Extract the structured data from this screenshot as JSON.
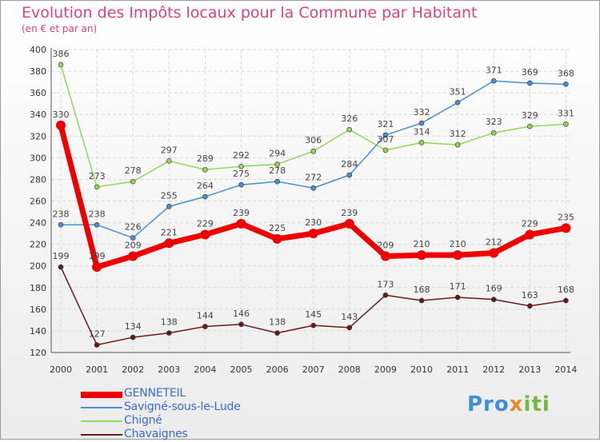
{
  "header": {
    "title": "Evolution des Impôts locaux pour la Commune par Habitant",
    "subtitle": "(en € et par an)"
  },
  "logo": {
    "text": "Proxiti"
  },
  "colors": {
    "GENNETEIL": "#ee0000",
    "Savigné-sous-le-Lude": "#4a8fd0",
    "Chigné": "#8fd65a",
    "Chavaignes": "#6b1a1a",
    "title": "#dd4477",
    "legend_text": "#3a6ad0"
  },
  "chart_data": {
    "type": "line",
    "title": "Evolution des Impôts locaux pour la Commune par Habitant",
    "subtitle": "(en € et par an)",
    "x": [
      2000,
      2001,
      2002,
      2003,
      2004,
      2005,
      2006,
      2007,
      2008,
      2009,
      2010,
      2011,
      2012,
      2013,
      2014
    ],
    "ylim": [
      120,
      400
    ],
    "yticks": [
      120,
      140,
      160,
      180,
      200,
      220,
      240,
      260,
      280,
      300,
      320,
      340,
      360,
      380,
      400
    ],
    "grid": true,
    "legend": "bottom-left",
    "series": [
      {
        "name": "GENNETEIL",
        "values": [
          330,
          199,
          209,
          221,
          229,
          239,
          225,
          230,
          239,
          209,
          210,
          210,
          212,
          229,
          235
        ]
      },
      {
        "name": "Savigné-sous-le-Lude",
        "values": [
          238,
          238,
          226,
          255,
          264,
          275,
          278,
          272,
          284,
          321,
          332,
          351,
          371,
          369,
          368
        ]
      },
      {
        "name": "Chigné",
        "values": [
          386,
          273,
          278,
          297,
          289,
          292,
          294,
          306,
          326,
          307,
          314,
          312,
          323,
          329,
          331
        ]
      },
      {
        "name": "Chavaignes",
        "values": [
          199,
          127,
          134,
          138,
          144,
          146,
          138,
          145,
          143,
          173,
          168,
          171,
          169,
          163,
          168
        ]
      }
    ]
  }
}
